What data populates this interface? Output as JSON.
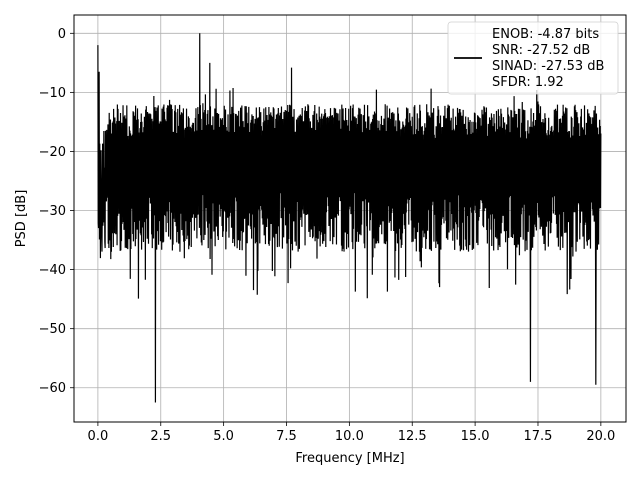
{
  "chart_data": {
    "type": "line",
    "xlabel": "Frequency [MHz]",
    "ylabel": "PSD [dB]",
    "xlim": [
      -0.95,
      21.0
    ],
    "ylim": [
      -65.8,
      3.1
    ],
    "xticks": [
      0.0,
      2.5,
      5.0,
      7.5,
      10.0,
      12.5,
      15.0,
      17.5,
      20.0
    ],
    "xtick_labels": [
      "0.0",
      "2.5",
      "5.0",
      "7.5",
      "10.0",
      "12.5",
      "15.0",
      "17.5",
      "20.0"
    ],
    "yticks": [
      0,
      -10,
      -20,
      -30,
      -40,
      -50,
      -60
    ],
    "ytick_labels": [
      "0",
      "−10",
      "−20",
      "−30",
      "−40",
      "−50",
      "−60"
    ],
    "grid": true,
    "legend_position": "top-right",
    "series": [
      {
        "name": "ENOB: -4.87 bits\nSNR: -27.52 dB\nSINAD: -27.53 dB\nSFDR: 1.92",
        "legend_lines": [
          "ENOB: -4.87 bits",
          "SNR: -27.52 dB",
          "SINAD: -27.53 dB",
          "SFDR: 1.92"
        ],
        "color": "#000000",
        "noise_floor_band": [
          -35.0,
          -12.0
        ],
        "spikes": [
          {
            "x": 0.0,
            "y": -2.0
          },
          {
            "x": 0.05,
            "y": -6.5
          },
          {
            "x": 4.05,
            "y": 0.0
          },
          {
            "x": 4.45,
            "y": -5.0
          },
          {
            "x": 7.7,
            "y": -5.8
          },
          {
            "x": 2.29,
            "y": -62.5
          },
          {
            "x": 19.8,
            "y": -59.5
          },
          {
            "x": 17.2,
            "y": -59.0
          }
        ]
      }
    ]
  }
}
